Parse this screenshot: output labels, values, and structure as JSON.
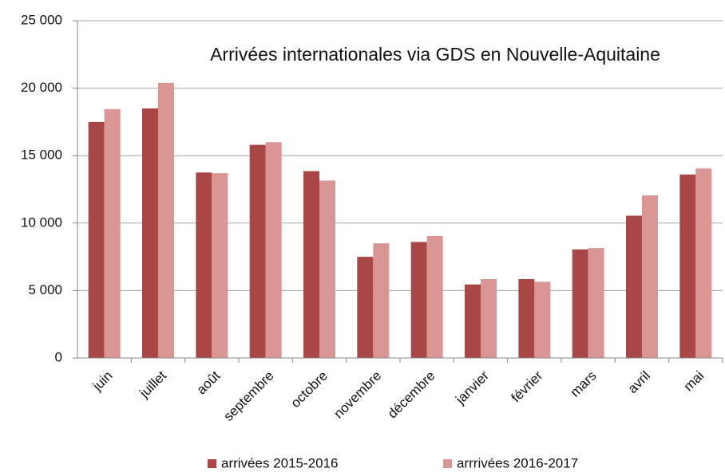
{
  "chart_data": {
    "type": "bar",
    "title": "Arrivées internationales via GDS en Nouvelle-Aquitaine",
    "categories": [
      "juin",
      "juillet",
      "août",
      "septembre",
      "octobre",
      "novembre",
      "décembre",
      "janvier",
      "février",
      "mars",
      "avril",
      "mai"
    ],
    "series": [
      {
        "name": "arrivées 2015-2016",
        "color": "#a94646",
        "values": [
          17500,
          18500,
          13750,
          15800,
          13850,
          7500,
          8600,
          5450,
          5850,
          8050,
          10550,
          13600
        ]
      },
      {
        "name": "arrrivées 2016-2017",
        "color": "#d99694",
        "values": [
          18450,
          20400,
          13700,
          16000,
          13150,
          8500,
          9050,
          5850,
          5650,
          8150,
          12050,
          14050
        ]
      }
    ],
    "ylim": [
      0,
      25000
    ],
    "yticks": [
      0,
      {
        "value": 5000,
        "label": "5 000"
      },
      {
        "value": 10000,
        "label": "10 000"
      },
      {
        "value": 15000,
        "label": "15 000"
      },
      {
        "value": 20000,
        "label": "20 000"
      },
      {
        "value": 25000,
        "label": "25 000"
      }
    ],
    "grid": true,
    "legend": "bottom"
  }
}
